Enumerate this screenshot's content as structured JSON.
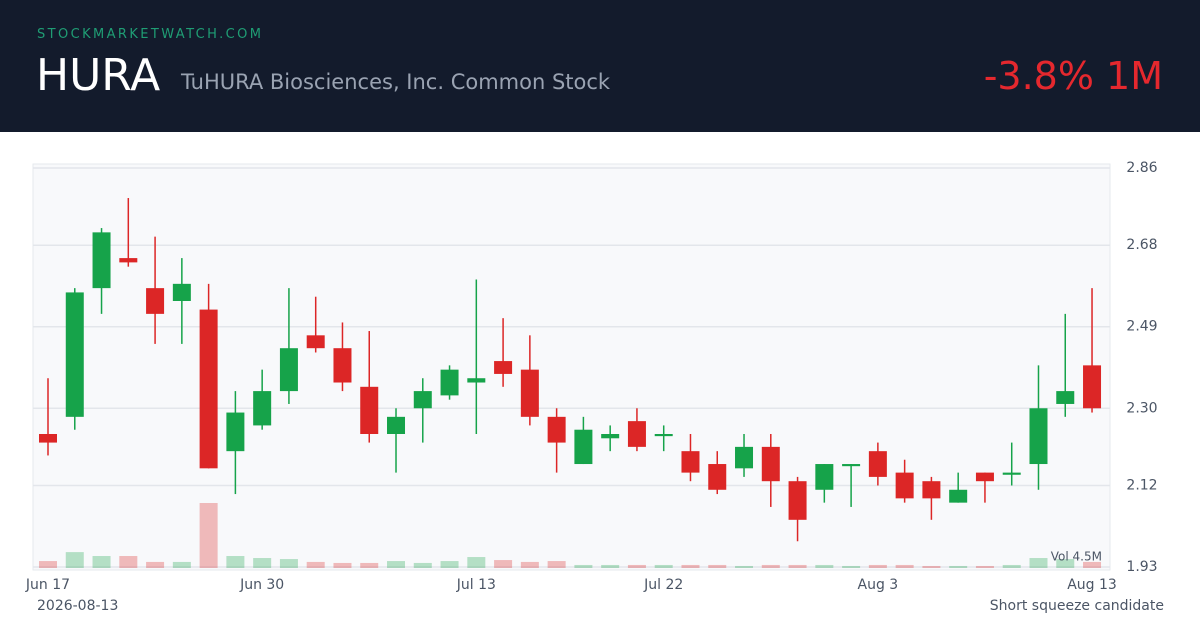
{
  "header": {
    "site": "STOCKMARKETWATCH.COM",
    "ticker": "HURA",
    "name": "TuHURA Biosciences, Inc. Common Stock",
    "change": "-3.8% 1M"
  },
  "chart_data": {
    "type": "candlestick",
    "categories": [
      "Jun 17",
      null,
      null,
      null,
      null,
      null,
      null,
      null,
      "Jun 30",
      null,
      null,
      null,
      null,
      null,
      null,
      null,
      "Jul 13",
      null,
      null,
      null,
      null,
      null,
      null,
      "Jul 22",
      null,
      null,
      null,
      null,
      null,
      null,
      null,
      "Aug 3",
      null,
      null,
      null,
      null,
      null,
      null,
      null,
      "Aug 13"
    ],
    "open": [
      2.24,
      2.28,
      2.58,
      2.65,
      2.58,
      2.55,
      2.53,
      2.2,
      2.26,
      2.34,
      2.47,
      2.44,
      2.35,
      2.24,
      2.3,
      2.33,
      2.36,
      2.41,
      2.39,
      2.28,
      2.17,
      2.23,
      2.27,
      2.235,
      2.2,
      2.17,
      2.16,
      2.21,
      2.13,
      2.11,
      2.165,
      2.2,
      2.15,
      2.13,
      2.08,
      2.15,
      2.145,
      2.17,
      2.31,
      2.4
    ],
    "high": [
      2.37,
      2.58,
      2.72,
      2.79,
      2.7,
      2.65,
      2.59,
      2.34,
      2.39,
      2.58,
      2.56,
      2.5,
      2.48,
      2.3,
      2.37,
      2.4,
      2.6,
      2.51,
      2.47,
      2.3,
      2.28,
      2.26,
      2.3,
      2.26,
      2.24,
      2.2,
      2.24,
      2.24,
      2.14,
      2.17,
      2.17,
      2.22,
      2.18,
      2.14,
      2.15,
      2.15,
      2.22,
      2.4,
      2.52,
      2.58
    ],
    "low": [
      2.19,
      2.25,
      2.52,
      2.63,
      2.45,
      2.45,
      2.16,
      2.1,
      2.25,
      2.31,
      2.43,
      2.34,
      2.22,
      2.15,
      2.22,
      2.32,
      2.24,
      2.35,
      2.26,
      2.15,
      2.17,
      2.2,
      2.2,
      2.2,
      2.13,
      2.1,
      2.14,
      2.07,
      1.99,
      2.08,
      2.07,
      2.12,
      2.08,
      2.04,
      2.08,
      2.08,
      2.12,
      2.11,
      2.28,
      2.29
    ],
    "close": [
      2.22,
      2.57,
      2.71,
      2.64,
      2.52,
      2.59,
      2.16,
      2.29,
      2.34,
      2.44,
      2.44,
      2.36,
      2.24,
      2.28,
      2.34,
      2.39,
      2.37,
      2.38,
      2.28,
      2.22,
      2.25,
      2.24,
      2.21,
      2.24,
      2.15,
      2.11,
      2.21,
      2.13,
      2.04,
      2.17,
      2.17,
      2.14,
      2.09,
      2.09,
      2.11,
      2.13,
      2.15,
      2.3,
      2.34,
      2.3
    ],
    "volume": [
      0.48,
      1.1,
      0.83,
      0.83,
      0.42,
      0.42,
      4.5,
      0.83,
      0.69,
      0.62,
      0.42,
      0.35,
      0.35,
      0.48,
      0.35,
      0.48,
      0.76,
      0.55,
      0.42,
      0.48,
      0.21,
      0.21,
      0.21,
      0.21,
      0.21,
      0.21,
      0.14,
      0.21,
      0.21,
      0.21,
      0.14,
      0.21,
      0.21,
      0.14,
      0.14,
      0.14,
      0.21,
      0.69,
      0.62,
      0.42
    ],
    "volume_label": "Vol 4.5M",
    "up_color": "#16a34a",
    "down_color": "#dc2626",
    "ylim": [
      1.93,
      2.86
    ],
    "yticks": [
      2.86,
      2.68,
      2.49,
      {
        "value": 2.3,
        "label": "2.30"
      },
      2.12,
      1.93
    ],
    "grid": true
  },
  "footer": {
    "date": "2026-08-13",
    "note": "Short squeeze candidate"
  }
}
